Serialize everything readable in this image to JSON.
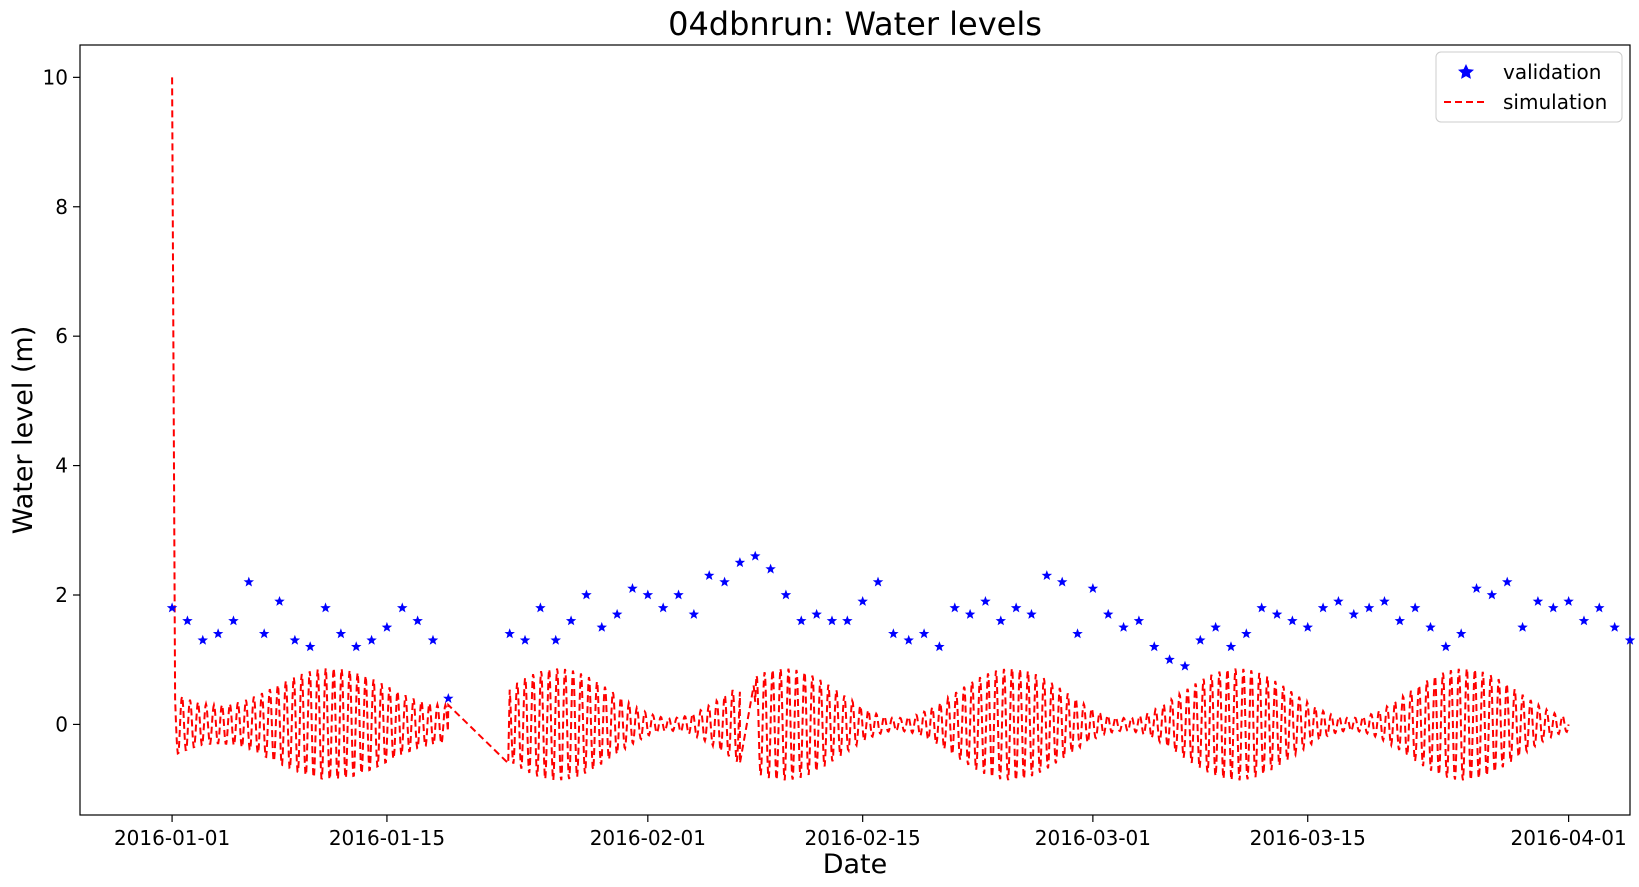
{
  "chart_data": {
    "type": "line",
    "title": "04dbnrun: Water levels",
    "xlabel": "Date",
    "ylabel": "Water level (m)",
    "xlim": [
      "2015-12-26",
      "2016-04-05"
    ],
    "ylim": [
      -1.4,
      10.5
    ],
    "x_ticks": [
      "2016-01-01",
      "2016-01-15",
      "2016-02-01",
      "2016-02-15",
      "2016-03-01",
      "2016-03-15",
      "2016-04-01"
    ],
    "y_ticks": [
      0,
      2,
      4,
      6,
      8,
      10
    ],
    "grid": false,
    "legend_position": "top-right",
    "series": [
      {
        "name": "validation",
        "style": "star-markers",
        "color": "#0000ff",
        "points": [
          [
            "2016-01-01",
            1.8
          ],
          [
            "2016-01-02",
            1.6
          ],
          [
            "2016-01-03",
            1.3
          ],
          [
            "2016-01-04",
            1.4
          ],
          [
            "2016-01-05",
            1.6
          ],
          [
            "2016-01-06",
            2.2
          ],
          [
            "2016-01-07",
            1.4
          ],
          [
            "2016-01-08",
            1.9
          ],
          [
            "2016-01-09",
            1.3
          ],
          [
            "2016-01-10",
            1.2
          ],
          [
            "2016-01-11",
            1.8
          ],
          [
            "2016-01-12",
            1.4
          ],
          [
            "2016-01-13",
            1.2
          ],
          [
            "2016-01-14",
            1.3
          ],
          [
            "2016-01-15",
            1.5
          ],
          [
            "2016-01-16",
            1.8
          ],
          [
            "2016-01-17",
            1.6
          ],
          [
            "2016-01-18",
            1.3
          ],
          [
            "2016-01-19",
            0.4
          ],
          [
            "2016-01-23",
            1.4
          ],
          [
            "2016-01-24",
            1.3
          ],
          [
            "2016-01-25",
            1.8
          ],
          [
            "2016-01-26",
            1.3
          ],
          [
            "2016-01-27",
            1.6
          ],
          [
            "2016-01-28",
            2.0
          ],
          [
            "2016-01-29",
            1.5
          ],
          [
            "2016-01-30",
            1.7
          ],
          [
            "2016-01-31",
            2.1
          ],
          [
            "2016-02-01",
            2.0
          ],
          [
            "2016-02-02",
            1.8
          ],
          [
            "2016-02-03",
            2.0
          ],
          [
            "2016-02-04",
            1.7
          ],
          [
            "2016-02-05",
            2.3
          ],
          [
            "2016-02-06",
            2.2
          ],
          [
            "2016-02-07",
            2.5
          ],
          [
            "2016-02-08",
            2.6
          ],
          [
            "2016-02-09",
            2.4
          ],
          [
            "2016-02-10",
            2.0
          ],
          [
            "2016-02-11",
            1.6
          ],
          [
            "2016-02-12",
            1.7
          ],
          [
            "2016-02-13",
            1.6
          ],
          [
            "2016-02-14",
            1.6
          ],
          [
            "2016-02-15",
            1.9
          ],
          [
            "2016-02-16",
            2.2
          ],
          [
            "2016-02-17",
            1.4
          ],
          [
            "2016-02-18",
            1.3
          ],
          [
            "2016-02-19",
            1.4
          ],
          [
            "2016-02-20",
            1.2
          ],
          [
            "2016-02-21",
            1.8
          ],
          [
            "2016-02-22",
            1.7
          ],
          [
            "2016-02-23",
            1.9
          ],
          [
            "2016-02-24",
            1.6
          ],
          [
            "2016-02-25",
            1.8
          ],
          [
            "2016-02-26",
            1.7
          ],
          [
            "2016-02-27",
            2.3
          ],
          [
            "2016-02-28",
            2.2
          ],
          [
            "2016-02-29",
            1.4
          ],
          [
            "2016-03-01",
            2.1
          ],
          [
            "2016-03-02",
            1.7
          ],
          [
            "2016-03-03",
            1.5
          ],
          [
            "2016-03-04",
            1.6
          ],
          [
            "2016-03-05",
            1.2
          ],
          [
            "2016-03-06",
            1.0
          ],
          [
            "2016-03-07",
            0.9
          ],
          [
            "2016-03-08",
            1.3
          ],
          [
            "2016-03-09",
            1.5
          ],
          [
            "2016-03-10",
            1.2
          ],
          [
            "2016-03-11",
            1.4
          ],
          [
            "2016-03-12",
            1.8
          ],
          [
            "2016-03-13",
            1.7
          ],
          [
            "2016-03-14",
            1.6
          ],
          [
            "2016-03-15",
            1.5
          ],
          [
            "2016-03-16",
            1.8
          ],
          [
            "2016-03-17",
            1.9
          ],
          [
            "2016-03-18",
            1.7
          ],
          [
            "2016-03-19",
            1.8
          ],
          [
            "2016-03-20",
            1.9
          ],
          [
            "2016-03-21",
            1.6
          ],
          [
            "2016-03-22",
            1.8
          ],
          [
            "2016-03-23",
            1.5
          ],
          [
            "2016-03-24",
            1.2
          ],
          [
            "2016-03-25",
            1.4
          ],
          [
            "2016-03-26",
            2.1
          ],
          [
            "2016-03-27",
            2.0
          ],
          [
            "2016-03-28",
            2.2
          ],
          [
            "2016-03-29",
            1.5
          ],
          [
            "2016-03-30",
            1.9
          ],
          [
            "2016-03-31",
            1.8
          ],
          [
            "2016-04-01",
            1.9
          ],
          [
            "2016-04-02",
            1.6
          ],
          [
            "2016-04-03",
            1.8
          ],
          [
            "2016-04-04",
            1.5
          ],
          [
            "2016-04-05",
            1.3
          ]
        ]
      },
      {
        "name": "simulation",
        "style": "dashed-line",
        "color": "#ff0000",
        "start_spike": [
          [
            "2016-01-01",
            10.0
          ],
          [
            "2016-01-01",
            0.4
          ]
        ],
        "segments": [
          {
            "start": "2016-01-01",
            "end": "2016-01-19",
            "amplitude_min": 0.3,
            "amplitude_max": 0.87,
            "period_days": 0.52,
            "end_value": 0.3
          },
          {
            "start": "2016-01-23",
            "end": "2016-02-07",
            "amplitude_min": 0.1,
            "amplitude_max": 0.87,
            "period_days": 0.52,
            "start_value": -0.6
          },
          {
            "start": "2016-02-08",
            "end": "2016-04-01",
            "amplitude_min": 0.1,
            "amplitude_max": 0.87,
            "period_days": 0.52,
            "start_value": 0.6
          }
        ]
      }
    ]
  }
}
